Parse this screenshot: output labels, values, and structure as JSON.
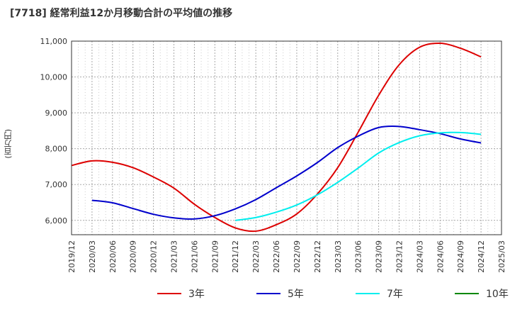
{
  "title": "[7718]  経常利益12か月移動合計の平均値の推移",
  "chart_data": {
    "type": "line",
    "title": "[7718]  経常利益12か月移動合計の平均値の推移",
    "ylabel": "(百万円)",
    "xlabel": "",
    "ylim": [
      5600,
      11000
    ],
    "yticks": [
      6000,
      7000,
      8000,
      9000,
      10000,
      11000
    ],
    "ytick_labels": [
      "6,000",
      "7,000",
      "8,000",
      "9,000",
      "10,000",
      "11,000"
    ],
    "xticks": [
      "2019/12",
      "2020/03",
      "2020/06",
      "2020/09",
      "2020/12",
      "2021/03",
      "2021/06",
      "2021/09",
      "2021/12",
      "2022/03",
      "2022/06",
      "2022/09",
      "2022/12",
      "2023/03",
      "2023/06",
      "2023/09",
      "2023/12",
      "2024/03",
      "2024/06",
      "2024/09",
      "2024/12",
      "2025/03"
    ],
    "grid": true,
    "legend_position": "bottom",
    "series": [
      {
        "name": "3年",
        "color": "#dd0000",
        "x": [
          "2019/12",
          "2020/03",
          "2020/06",
          "2020/09",
          "2020/12",
          "2021/03",
          "2021/06",
          "2021/09",
          "2021/12",
          "2022/03",
          "2022/06",
          "2022/09",
          "2022/12",
          "2023/03",
          "2023/06",
          "2023/09",
          "2023/12",
          "2024/03",
          "2024/06",
          "2024/09",
          "2024/12"
        ],
        "values": [
          7530,
          7660,
          7620,
          7470,
          7210,
          6900,
          6450,
          6080,
          5790,
          5700,
          5880,
          6180,
          6730,
          7470,
          8460,
          9490,
          10340,
          10830,
          10940,
          10800,
          10560
        ]
      },
      {
        "name": "5年",
        "color": "#0000cc",
        "x": [
          "2020/03",
          "2020/06",
          "2020/09",
          "2020/12",
          "2021/03",
          "2021/06",
          "2021/09",
          "2021/12",
          "2022/03",
          "2022/06",
          "2022/09",
          "2022/12",
          "2023/03",
          "2023/06",
          "2023/09",
          "2023/12",
          "2024/03",
          "2024/06",
          "2024/09",
          "2024/12"
        ],
        "values": [
          6560,
          6490,
          6330,
          6170,
          6070,
          6040,
          6130,
          6320,
          6580,
          6910,
          7240,
          7610,
          8030,
          8350,
          8590,
          8620,
          8530,
          8420,
          8270,
          8160
        ]
      },
      {
        "name": "7年",
        "color": "#00eeee",
        "x": [
          "2021/12",
          "2022/03",
          "2022/06",
          "2022/09",
          "2022/12",
          "2023/03",
          "2023/06",
          "2023/09",
          "2023/12",
          "2024/03",
          "2024/06",
          "2024/09",
          "2024/12"
        ],
        "values": [
          6000,
          6080,
          6230,
          6430,
          6710,
          7060,
          7460,
          7880,
          8170,
          8360,
          8440,
          8450,
          8400
        ]
      },
      {
        "name": "10年",
        "color": "#008800",
        "x": [],
        "values": []
      }
    ]
  }
}
